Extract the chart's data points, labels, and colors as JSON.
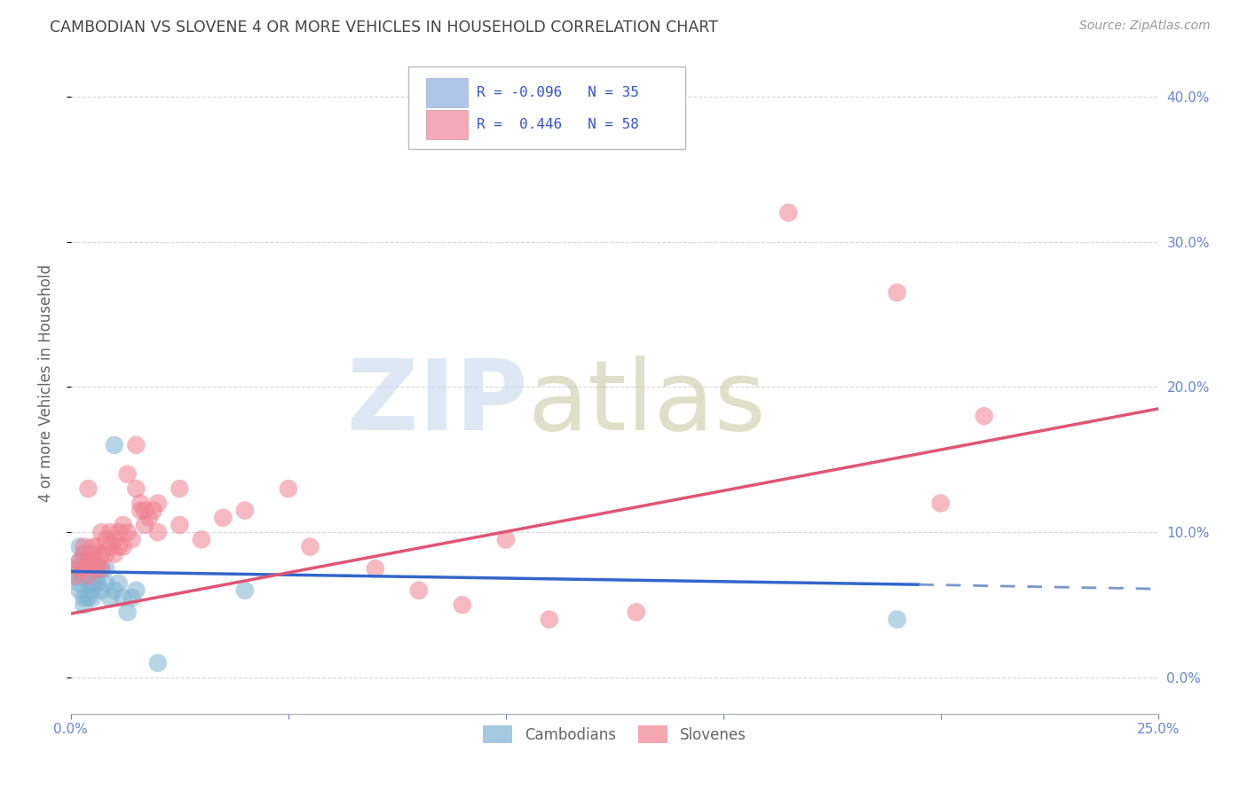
{
  "title": "CAMBODIAN VS SLOVENE 4 OR MORE VEHICLES IN HOUSEHOLD CORRELATION CHART",
  "source": "Source: ZipAtlas.com",
  "ylabel": "4 or more Vehicles in Household",
  "xlim": [
    0.0,
    0.25
  ],
  "ylim": [
    -0.025,
    0.43
  ],
  "xticks": [
    0.0,
    0.05,
    0.1,
    0.15,
    0.2,
    0.25
  ],
  "yticks": [
    0.0,
    0.1,
    0.2,
    0.3,
    0.4
  ],
  "xtick_labels_bottom": [
    "0.0%",
    "",
    "",
    "",
    "",
    "25.0%"
  ],
  "ytick_labels_right": [
    "0.0%",
    "10.0%",
    "20.0%",
    "30.0%",
    "40.0%"
  ],
  "cambodian_color": "#7fb3d3",
  "slovene_color": "#f08090",
  "cambodian_label": "Cambodians",
  "slovene_label": "Slovenes",
  "background_color": "#ffffff",
  "grid_color": "#cccccc",
  "title_color": "#444444",
  "axis_label_color": "#6688cc",
  "legend_box_color": "#aec6e8",
  "legend_box_color2": "#f4a8b8",
  "legend_text_color": "#3355cc",
  "cambodian_scatter": [
    [
      0.001,
      0.075
    ],
    [
      0.001,
      0.07
    ],
    [
      0.002,
      0.09
    ],
    [
      0.002,
      0.065
    ],
    [
      0.002,
      0.08
    ],
    [
      0.002,
      0.06
    ],
    [
      0.003,
      0.085
    ],
    [
      0.003,
      0.07
    ],
    [
      0.003,
      0.055
    ],
    [
      0.003,
      0.05
    ],
    [
      0.004,
      0.075
    ],
    [
      0.004,
      0.065
    ],
    [
      0.004,
      0.055
    ],
    [
      0.005,
      0.08
    ],
    [
      0.005,
      0.065
    ],
    [
      0.005,
      0.06
    ],
    [
      0.005,
      0.055
    ],
    [
      0.006,
      0.075
    ],
    [
      0.006,
      0.065
    ],
    [
      0.006,
      0.07
    ],
    [
      0.007,
      0.075
    ],
    [
      0.007,
      0.06
    ],
    [
      0.008,
      0.065
    ],
    [
      0.008,
      0.075
    ],
    [
      0.009,
      0.055
    ],
    [
      0.01,
      0.16
    ],
    [
      0.01,
      0.06
    ],
    [
      0.011,
      0.065
    ],
    [
      0.012,
      0.055
    ],
    [
      0.013,
      0.045
    ],
    [
      0.014,
      0.055
    ],
    [
      0.015,
      0.06
    ],
    [
      0.04,
      0.06
    ],
    [
      0.19,
      0.04
    ],
    [
      0.02,
      0.01
    ]
  ],
  "slovene_scatter": [
    [
      0.001,
      0.07
    ],
    [
      0.002,
      0.08
    ],
    [
      0.002,
      0.075
    ],
    [
      0.003,
      0.09
    ],
    [
      0.003,
      0.075
    ],
    [
      0.003,
      0.085
    ],
    [
      0.004,
      0.13
    ],
    [
      0.004,
      0.08
    ],
    [
      0.004,
      0.07
    ],
    [
      0.005,
      0.09
    ],
    [
      0.005,
      0.08
    ],
    [
      0.005,
      0.085
    ],
    [
      0.006,
      0.09
    ],
    [
      0.006,
      0.075
    ],
    [
      0.006,
      0.08
    ],
    [
      0.007,
      0.1
    ],
    [
      0.007,
      0.085
    ],
    [
      0.007,
      0.075
    ],
    [
      0.008,
      0.095
    ],
    [
      0.008,
      0.085
    ],
    [
      0.009,
      0.1
    ],
    [
      0.009,
      0.09
    ],
    [
      0.01,
      0.095
    ],
    [
      0.01,
      0.085
    ],
    [
      0.011,
      0.1
    ],
    [
      0.011,
      0.09
    ],
    [
      0.012,
      0.105
    ],
    [
      0.012,
      0.09
    ],
    [
      0.013,
      0.1
    ],
    [
      0.013,
      0.14
    ],
    [
      0.014,
      0.095
    ],
    [
      0.015,
      0.16
    ],
    [
      0.015,
      0.13
    ],
    [
      0.016,
      0.12
    ],
    [
      0.016,
      0.115
    ],
    [
      0.017,
      0.115
    ],
    [
      0.017,
      0.105
    ],
    [
      0.018,
      0.11
    ],
    [
      0.019,
      0.115
    ],
    [
      0.02,
      0.12
    ],
    [
      0.02,
      0.1
    ],
    [
      0.025,
      0.13
    ],
    [
      0.025,
      0.105
    ],
    [
      0.03,
      0.095
    ],
    [
      0.035,
      0.11
    ],
    [
      0.04,
      0.115
    ],
    [
      0.05,
      0.13
    ],
    [
      0.055,
      0.09
    ],
    [
      0.07,
      0.075
    ],
    [
      0.08,
      0.06
    ],
    [
      0.09,
      0.05
    ],
    [
      0.1,
      0.095
    ],
    [
      0.11,
      0.04
    ],
    [
      0.13,
      0.045
    ],
    [
      0.165,
      0.32
    ],
    [
      0.19,
      0.265
    ],
    [
      0.2,
      0.12
    ],
    [
      0.21,
      0.18
    ]
  ],
  "cam_trend_y0": 0.073,
  "cam_trend_y_solid_end": 0.064,
  "cam_trend_x_solid_end": 0.195,
  "cam_trend_y_dashed_end": 0.061,
  "slo_trend_y0": 0.044,
  "slo_trend_y_end": 0.185
}
